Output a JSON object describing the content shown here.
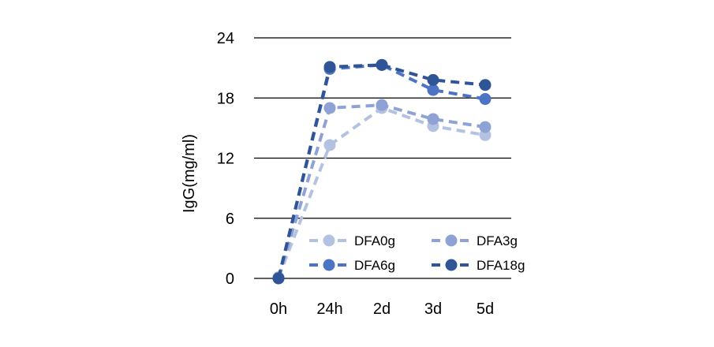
{
  "chart_data": {
    "type": "line",
    "title": "",
    "xlabel": "",
    "ylabel": "IgG(mg/ml)",
    "categories": [
      "0h",
      "24h",
      "2d",
      "3d",
      "5d"
    ],
    "ylim": [
      0,
      24
    ],
    "yticks": [
      0,
      6,
      12,
      18,
      24
    ],
    "grid": true,
    "legend_position": "bottom-right inside plot",
    "series": [
      {
        "name": "DFA0g",
        "color": "#b4c2e2",
        "values": [
          0.1,
          13.3,
          17.0,
          15.2,
          14.3
        ]
      },
      {
        "name": "DFA3g",
        "color": "#8ea2d6",
        "values": [
          0.1,
          17.0,
          17.3,
          15.9,
          15.1
        ]
      },
      {
        "name": "DFA6g",
        "color": "#4d73c4",
        "values": [
          0.0,
          20.9,
          21.3,
          18.8,
          17.9
        ]
      },
      {
        "name": "DFA18g",
        "color": "#2f5597",
        "values": [
          0.0,
          21.1,
          21.3,
          19.8,
          19.3
        ]
      }
    ]
  }
}
